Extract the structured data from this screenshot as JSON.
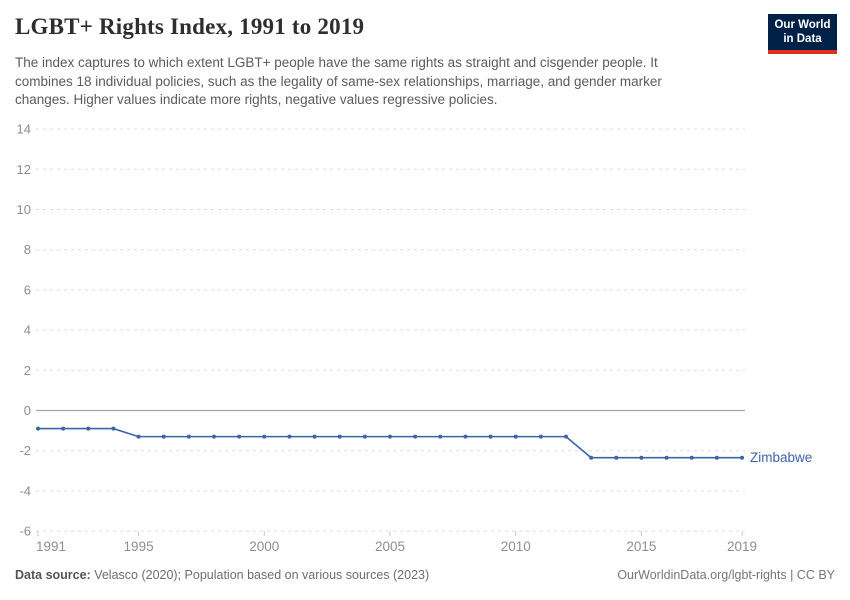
{
  "header": {
    "title": "LGBT+ Rights Index, 1991 to 2019",
    "subtitle_lines": [
      "The index captures to which extent LGBT+ people have the same rights as straight and cisgender people. It",
      "combines 18 individual policies, such as the legality of same-sex relationships, marriage, and gender marker",
      "changes. Higher values indicate more rights, negative values regressive policies."
    ],
    "logo": {
      "line1": "Our World",
      "line2": "in Data"
    }
  },
  "chart_data": {
    "type": "line",
    "title": "LGBT+ Rights Index, 1991 to 2019",
    "xlabel": "",
    "ylabel": "",
    "x": [
      1991,
      1992,
      1993,
      1994,
      1995,
      1996,
      1997,
      1998,
      1999,
      2000,
      2001,
      2002,
      2003,
      2004,
      2005,
      2006,
      2007,
      2008,
      2009,
      2010,
      2011,
      2012,
      2013,
      2014,
      2015,
      2016,
      2017,
      2018,
      2019
    ],
    "series": [
      {
        "name": "Zimbabwe",
        "values": [
          -0.9,
          -0.9,
          -0.9,
          -0.9,
          -1.3,
          -1.3,
          -1.3,
          -1.3,
          -1.3,
          -1.3,
          -1.3,
          -1.3,
          -1.3,
          -1.3,
          -1.3,
          -1.3,
          -1.3,
          -1.3,
          -1.3,
          -1.3,
          -1.3,
          -1.3,
          -2.35,
          -2.35,
          -2.35,
          -2.35,
          -2.35,
          -2.35,
          -2.35
        ]
      }
    ],
    "ylim": [
      -6,
      14
    ],
    "xlim": [
      1991,
      2019
    ],
    "y_ticks": [
      14,
      12,
      10,
      8,
      6,
      4,
      2,
      0,
      -2,
      -4,
      -6
    ],
    "x_ticks": [
      1991,
      1995,
      2000,
      2005,
      2010,
      2015,
      2019
    ],
    "grid": true,
    "legend_position": "end-of-line-label"
  },
  "colors": {
    "line": "#3d64a8",
    "entity_label": "#3d64a8",
    "grid": "#dddddd",
    "zero_line": "#a5a5a5",
    "axis_tick_mark": "#cccccc",
    "axis_text": "#8e8e8e",
    "logo_bg": "#002147",
    "logo_stripe": "#dc3022"
  },
  "footer": {
    "source_label": "Data source:",
    "source_text": " Velasco (2020); Population based on various sources (2023)",
    "credit": "OurWorldinData.org/lgbt-rights | CC BY"
  }
}
